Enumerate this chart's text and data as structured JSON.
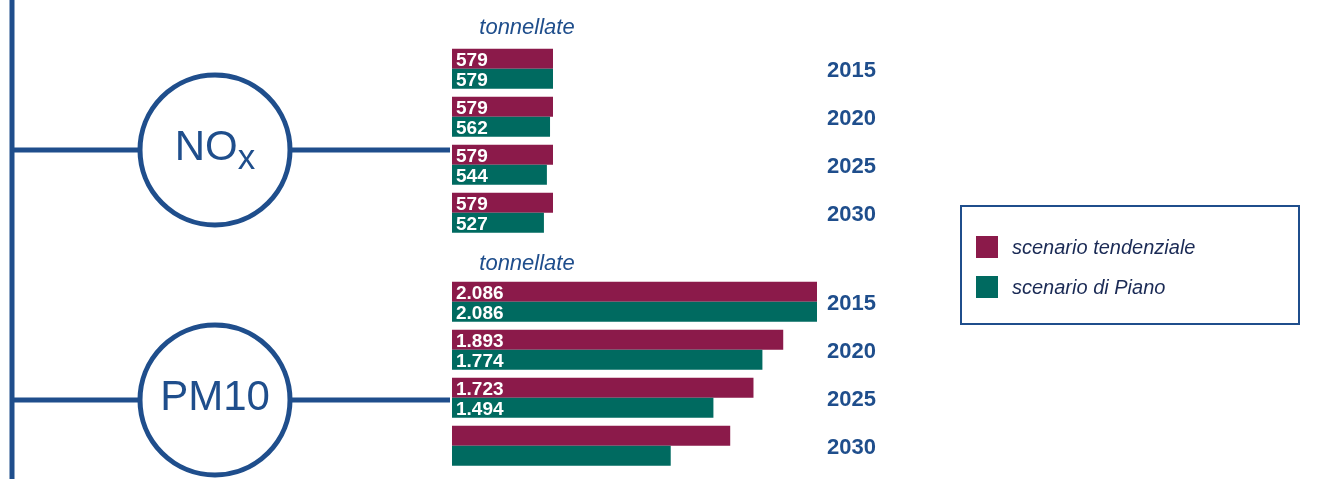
{
  "chart_data": [
    {
      "type": "bar",
      "orientation": "horizontal",
      "title": "NO$_{x}$",
      "xlabel": "tonnellate",
      "categories": [
        "2015",
        "2020",
        "2025",
        "2030"
      ],
      "legend": "right",
      "series": [
        {
          "name": "scenario tendenziale",
          "color": "#8b1a4a",
          "values": [
            579,
            579,
            579,
            579
          ],
          "value_labels": [
            "579",
            "579",
            "579",
            "579"
          ]
        },
        {
          "name": "scenario di Piano",
          "color": "#006a60",
          "values": [
            579,
            562,
            544,
            527
          ],
          "value_labels": [
            "579",
            "562",
            "544",
            "527"
          ]
        }
      ]
    },
    {
      "type": "bar",
      "orientation": "horizontal",
      "title": "PM10",
      "xlabel": "tonnellate",
      "categories": [
        "2015",
        "2020",
        "2025",
        "2030"
      ],
      "series": [
        {
          "color": "#8b1a4a",
          "values": [
            2086,
            1893,
            1723,
            1590
          ],
          "value_labels": [
            "2.086",
            "1.893",
            "1.723",
            null
          ]
        },
        {
          "color": "#006a60",
          "values": [
            2086,
            1774,
            1494,
            1250
          ],
          "value_labels": [
            "2.086",
            "1.774",
            "1.494",
            null
          ]
        }
      ]
    }
  ]
}
